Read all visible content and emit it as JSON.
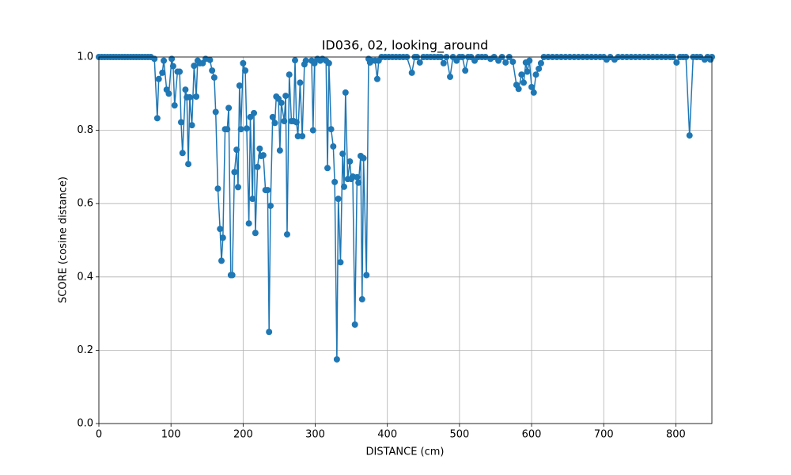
{
  "chart_data": {
    "type": "line",
    "title": "ID036, 02, looking_around",
    "xlabel": "DISTANCE (cm)",
    "ylabel": "SCORE (cosine distance)",
    "color": "#1f77b4",
    "grid": true,
    "xlim": [
      0,
      850
    ],
    "xticks": [
      0,
      100,
      200,
      300,
      400,
      500,
      600,
      700,
      800
    ],
    "ylim": [
      0,
      1
    ],
    "yticks": [
      {
        "value": 0,
        "label": "0.0"
      },
      0.2,
      0.4,
      0.6,
      0.8,
      {
        "value": 1,
        "label": "1.0"
      }
    ],
    "x": [
      0,
      4,
      8,
      12,
      16,
      20,
      24,
      28,
      32,
      36,
      40,
      44,
      48,
      52,
      56,
      60,
      64,
      68,
      72,
      77,
      81,
      83,
      88,
      90,
      94,
      97,
      101,
      103,
      105,
      109,
      112,
      114,
      116,
      120,
      122,
      124,
      126,
      129,
      132,
      135,
      137,
      140,
      144,
      148,
      154,
      157,
      160,
      162,
      165,
      168,
      170,
      172,
      175,
      178,
      180,
      183,
      185,
      188,
      191,
      193,
      195,
      197,
      200,
      203,
      205,
      208,
      210,
      213,
      215,
      217,
      220,
      223,
      225,
      228,
      231,
      234,
      236,
      238,
      241,
      244,
      246,
      249,
      251,
      253,
      257,
      259,
      261,
      264,
      267,
      270,
      272,
      274,
      276,
      279,
      282,
      285,
      287,
      295,
      297,
      299,
      303,
      307,
      310,
      315,
      317,
      319,
      322,
      325,
      327,
      330,
      332,
      335,
      338,
      340,
      342,
      345,
      348,
      350,
      352,
      355,
      358,
      360,
      363,
      365,
      367,
      371,
      374,
      376,
      378,
      383,
      386,
      388,
      392,
      397,
      402,
      407,
      412,
      417,
      422,
      427,
      434,
      438,
      441,
      445,
      450,
      455,
      460,
      465,
      470,
      474,
      478,
      482,
      487,
      491,
      496,
      500,
      504,
      508,
      512,
      516,
      521,
      526,
      531,
      536,
      543,
      548,
      554,
      559,
      564,
      569,
      574,
      579,
      582,
      586,
      589,
      592,
      594,
      597,
      600,
      603,
      606,
      610,
      613,
      617,
      623,
      629,
      635,
      641,
      647,
      653,
      659,
      665,
      671,
      677,
      683,
      689,
      695,
      700,
      704,
      709,
      715,
      720,
      726,
      732,
      738,
      744,
      750,
      756,
      762,
      768,
      774,
      780,
      786,
      792,
      796,
      801,
      806,
      810,
      814,
      819,
      824,
      829,
      834,
      840,
      844,
      848,
      850
    ],
    "values": [
      1,
      1,
      1,
      1,
      1,
      1,
      1,
      1,
      1,
      1,
      1,
      1,
      1,
      1,
      1,
      1,
      1,
      1,
      1,
      0.995,
      0.833,
      0.94,
      0.957,
      0.99,
      0.911,
      0.9,
      0.995,
      0.975,
      0.868,
      0.96,
      0.96,
      0.822,
      0.738,
      0.911,
      0.89,
      0.708,
      0.89,
      0.814,
      0.976,
      0.892,
      0.99,
      0.983,
      0.983,
      0.995,
      0.992,
      0.963,
      0.944,
      0.85,
      0.641,
      0.531,
      0.444,
      0.507,
      0.803,
      0.803,
      0.861,
      0.405,
      0.405,
      0.686,
      0.747,
      0.645,
      0.922,
      0.803,
      0.983,
      0.963,
      0.805,
      0.546,
      0.836,
      0.613,
      0.847,
      0.52,
      0.7,
      0.75,
      0.73,
      0.732,
      0.637,
      0.637,
      0.25,
      0.594,
      0.836,
      0.82,
      0.892,
      0.886,
      0.745,
      0.875,
      0.825,
      0.894,
      0.516,
      0.952,
      0.825,
      0.825,
      0.991,
      0.822,
      0.784,
      0.93,
      0.784,
      0.98,
      0.99,
      0.99,
      0.8,
      0.983,
      0.995,
      0.99,
      0.995,
      0.99,
      0.697,
      0.983,
      0.803,
      0.756,
      0.659,
      0.175,
      0.613,
      0.44,
      0.736,
      0.646,
      0.903,
      0.667,
      0.715,
      0.667,
      0.674,
      0.27,
      0.672,
      0.657,
      0.73,
      0.339,
      0.724,
      0.405,
      0.995,
      0.985,
      0.99,
      0.99,
      0.94,
      0.99,
      1,
      1,
      1,
      1,
      1,
      1,
      1,
      1,
      0.957,
      1,
      1,
      0.985,
      1,
      1,
      1,
      1,
      1,
      1,
      0.983,
      1,
      0.946,
      1,
      0.99,
      1,
      1,
      0.963,
      1,
      1,
      0.99,
      1,
      1,
      1,
      0.995,
      1,
      0.99,
      1,
      0.985,
      1,
      0.987,
      0.924,
      0.913,
      0.952,
      0.93,
      0.985,
      0.96,
      0.99,
      0.918,
      0.903,
      0.952,
      0.968,
      0.983,
      1,
      1,
      1,
      1,
      1,
      1,
      1,
      1,
      1,
      1,
      1,
      1,
      1,
      1,
      1,
      0.993,
      1,
      0.993,
      1,
      1,
      1,
      1,
      1,
      1,
      1,
      1,
      1,
      1,
      1,
      1,
      1,
      1,
      0.985,
      1,
      1,
      1,
      0.786,
      1,
      1,
      1,
      0.993,
      1,
      0.993,
      1
    ]
  }
}
